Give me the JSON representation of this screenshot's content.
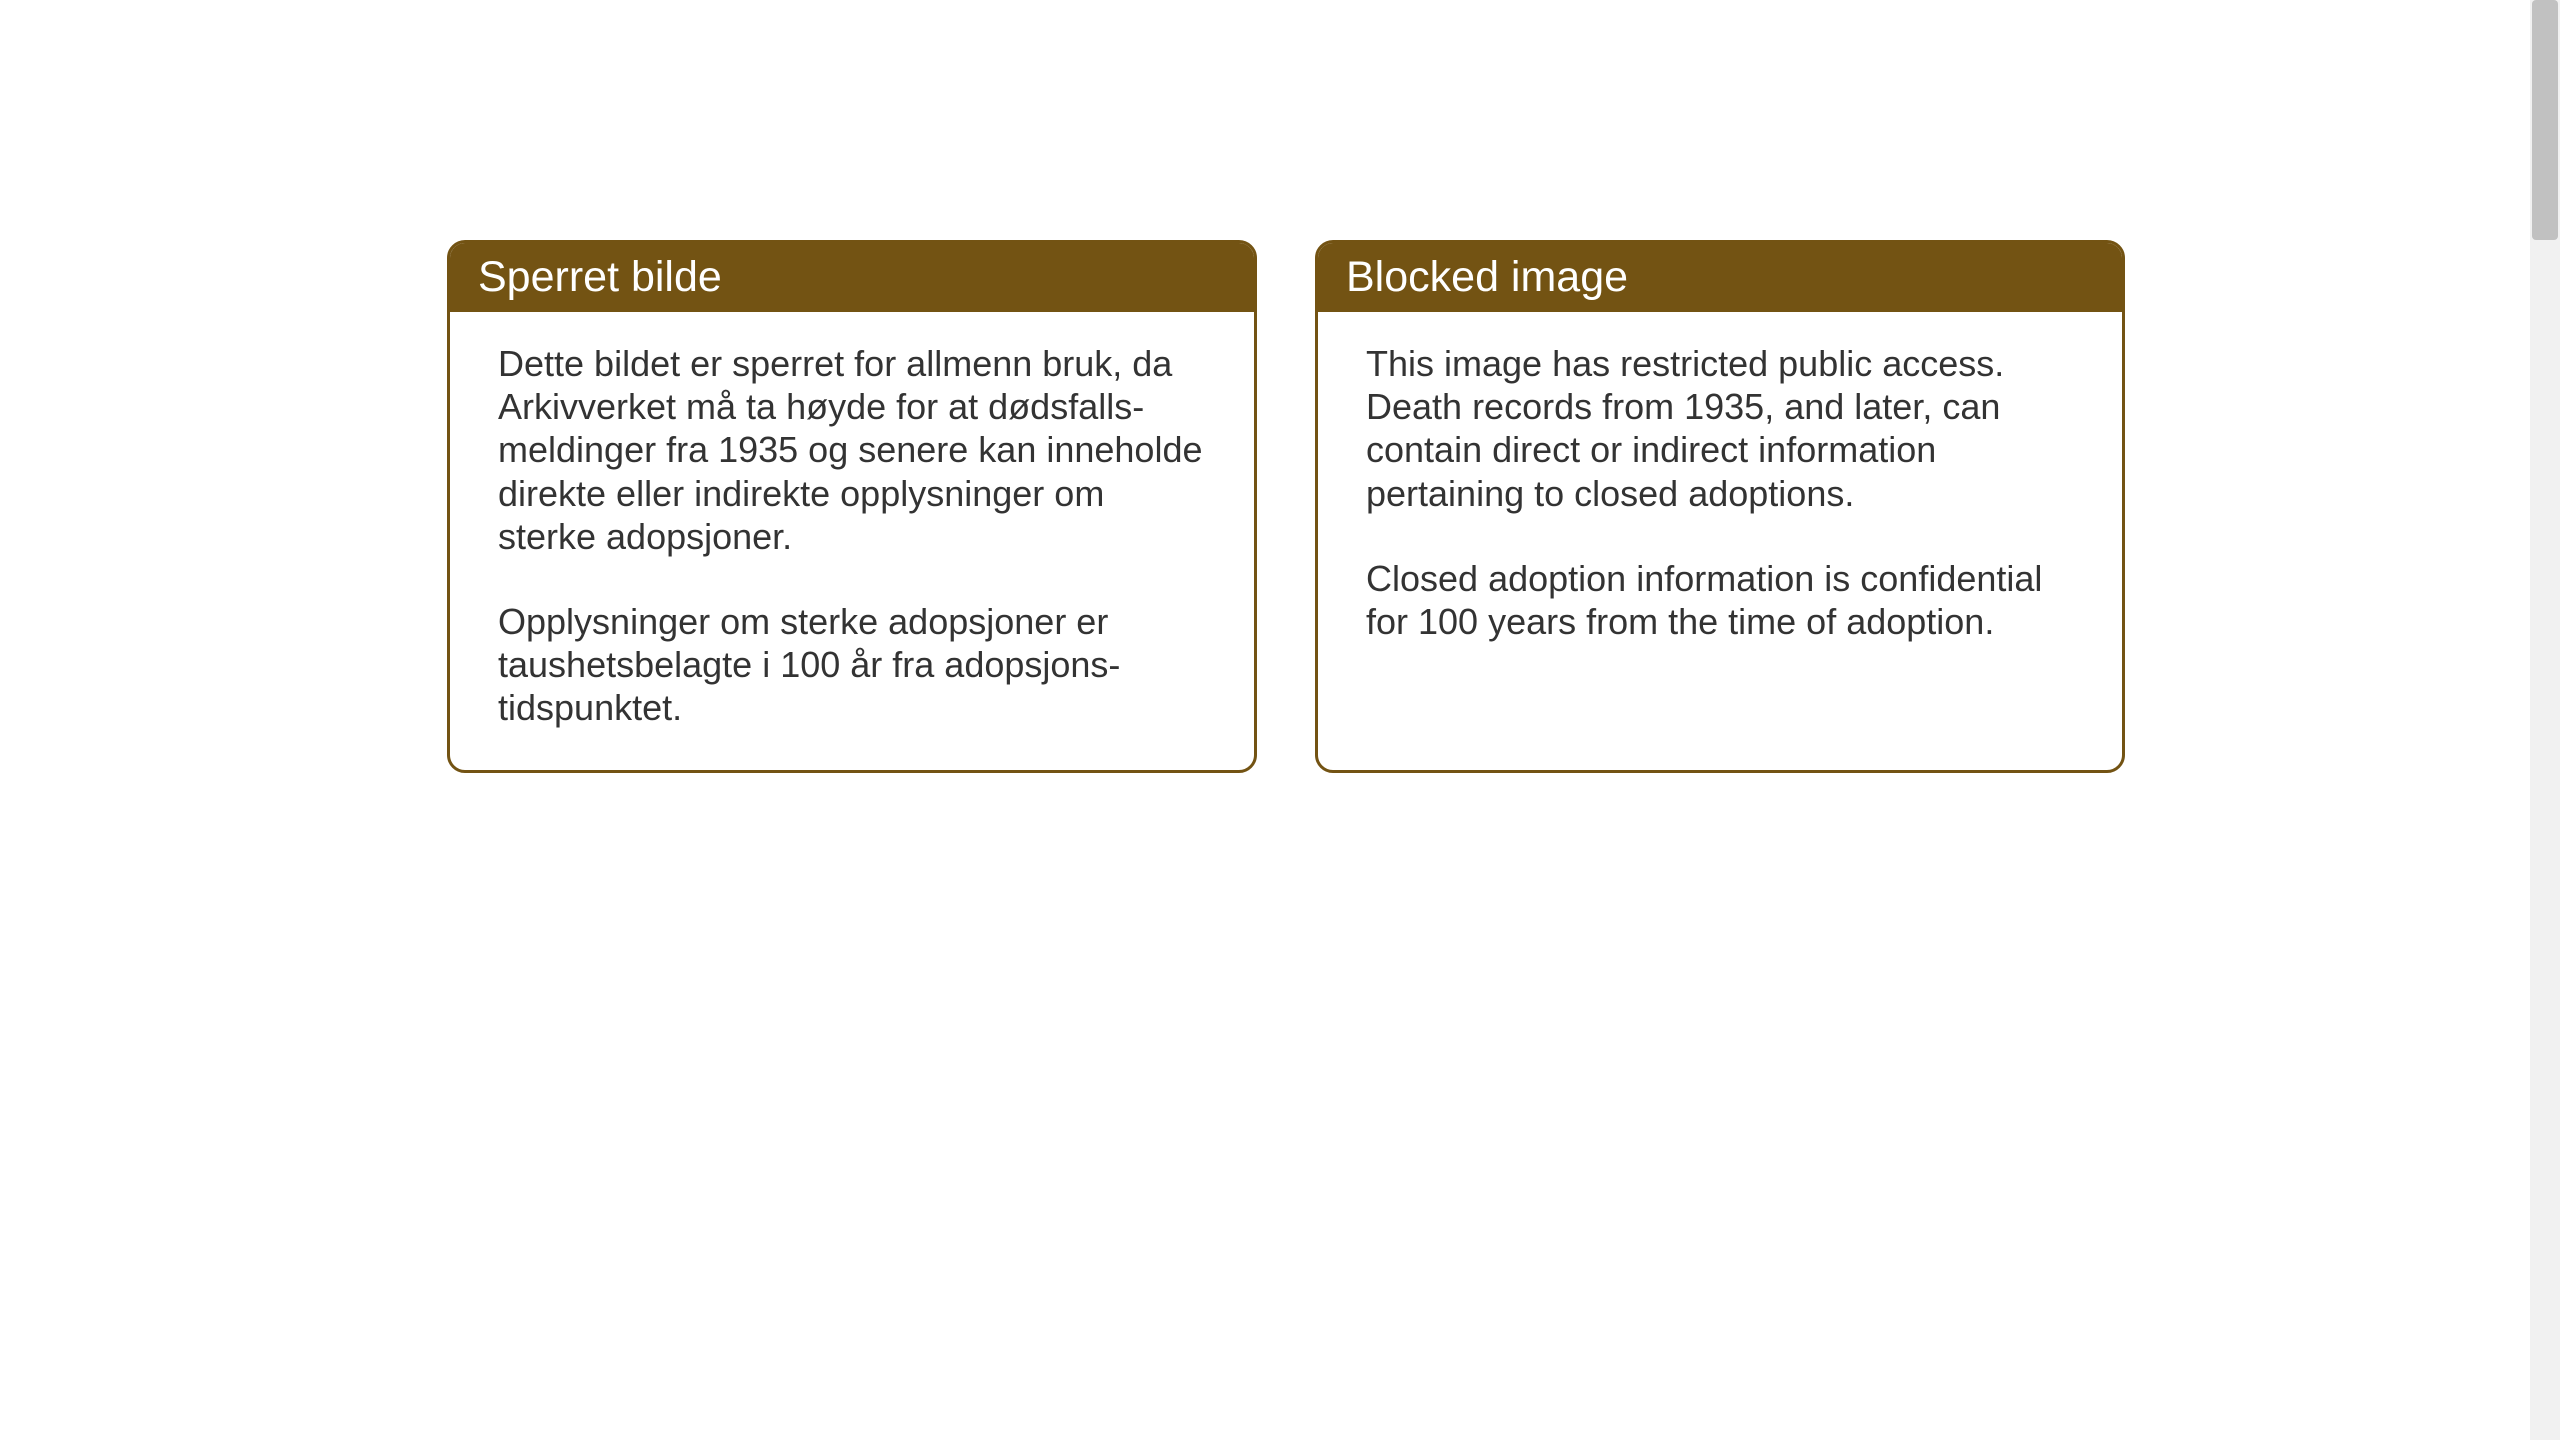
{
  "cards": [
    {
      "title": "Sperret bilde",
      "paragraph1": "Dette bildet er sperret for allmenn bruk, da Arkivverket må ta høyde for at dødsfalls-meldinger fra 1935 og senere kan inneholde direkte eller indirekte opplysninger om sterke adopsjoner.",
      "paragraph2": "Opplysninger om sterke adopsjoner er taushetsbelagte i 100 år fra adopsjons-tidspunktet."
    },
    {
      "title": "Blocked image",
      "paragraph1": "This image has restricted public access. Death records from 1935, and later, can contain direct or indirect information pertaining to closed adoptions.",
      "paragraph2": "Closed adoption information is confidential for 100 years from the time of adoption."
    }
  ],
  "colors": {
    "header_bg": "#735313",
    "header_text": "#ffffff",
    "border": "#735313",
    "body_bg": "#ffffff",
    "body_text": "#333333"
  }
}
